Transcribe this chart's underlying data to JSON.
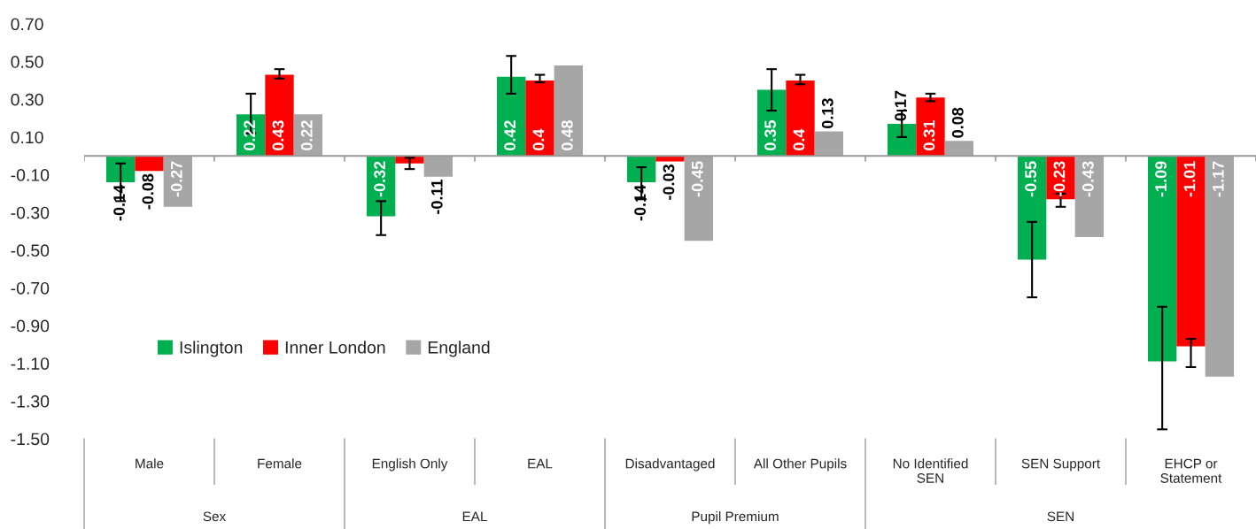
{
  "chart_data": {
    "type": "bar",
    "categories": [
      "Male",
      "Female",
      "English Only",
      "EAL",
      "Disadvantaged",
      "All Other Pupils",
      "No Identified\nSEN",
      "SEN Support",
      "EHCP or\nStatement"
    ],
    "series": [
      {
        "name": "Islington",
        "color": "#00b050",
        "values": [
          -0.14,
          0.22,
          -0.32,
          0.42,
          -0.14,
          0.35,
          0.17,
          -0.55,
          -1.09
        ],
        "errors": [
          [
            -0.24,
            -0.04
          ],
          [
            0.12,
            0.33
          ],
          [
            -0.42,
            -0.24
          ],
          [
            0.33,
            0.53
          ],
          [
            -0.23,
            -0.06
          ],
          [
            0.24,
            0.46
          ],
          [
            0.1,
            0.24
          ],
          [
            -0.75,
            -0.35
          ],
          [
            -1.45,
            -0.8
          ]
        ],
        "value_labels": [
          "-0.14",
          "0.22",
          "-0.32",
          "0.42",
          "-0.14",
          "0.35",
          "0.17",
          "-0.55",
          "-1.09"
        ]
      },
      {
        "name": "Inner London",
        "color": "#ff0000",
        "values": [
          -0.08,
          0.43,
          -0.04,
          0.4,
          -0.03,
          0.4,
          0.31,
          -0.23,
          -1.01
        ],
        "errors": [
          null,
          [
            0.41,
            0.46
          ],
          [
            -0.07,
            -0.01
          ],
          [
            0.39,
            0.43
          ],
          null,
          [
            0.38,
            0.43
          ],
          [
            0.29,
            0.33
          ],
          [
            -0.27,
            -0.2
          ],
          [
            -1.12,
            -0.97
          ]
        ],
        "value_labels": [
          "-0.08",
          "0.43",
          null,
          "0.4",
          "-0.03",
          "0.4",
          "0.31",
          "-0.23",
          "-1.01"
        ]
      },
      {
        "name": "England",
        "color": "#a6a6a6",
        "values": [
          -0.27,
          0.22,
          -0.11,
          0.48,
          -0.45,
          0.13,
          0.08,
          -0.43,
          -1.17
        ],
        "value_labels": [
          "-0.27",
          "0.22",
          "-0.11",
          "0.48",
          "-0.45",
          "0.13",
          "0.08",
          "-0.43",
          "-1.17"
        ]
      }
    ],
    "ylim": [
      -1.5,
      0.7
    ],
    "yticks": [
      {
        "value": 0.7,
        "label": "0.70"
      },
      {
        "value": 0.5,
        "label": "0.50"
      },
      {
        "value": 0.3,
        "label": "0.30"
      },
      {
        "value": 0.1,
        "label": "0.10"
      },
      {
        "value": -0.1,
        "label": "-0.10"
      },
      {
        "value": -0.3,
        "label": "-0.30"
      },
      {
        "value": -0.5,
        "label": "-0.50"
      },
      {
        "value": -0.7,
        "label": "-0.70"
      },
      {
        "value": -0.9,
        "label": "-0.90"
      },
      {
        "value": -1.1,
        "label": "-1.10"
      },
      {
        "value": -1.3,
        "label": "-1.30"
      },
      {
        "value": -1.5,
        "label": "-1.50"
      }
    ],
    "annotations": [
      "Sex",
      "EAL",
      "Pupil Premium",
      "SEN"
    ],
    "grid": false,
    "legend": "bottom left"
  }
}
